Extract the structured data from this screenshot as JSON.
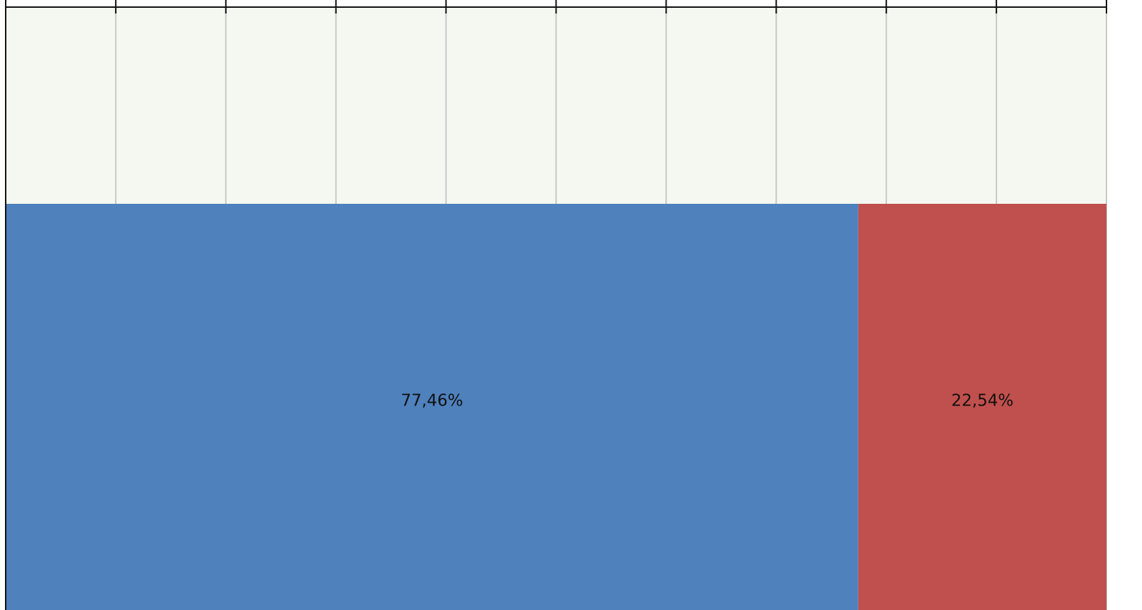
{
  "chart_data": {
    "type": "bar",
    "orientation": "horizontal",
    "stacked": true,
    "categories": [
      null
    ],
    "series": [
      {
        "color": "#4f81bd",
        "values": [
          77.46
        ],
        "value_labels": [
          "77,46%"
        ]
      },
      {
        "color": "#c0504d",
        "values": [
          22.54
        ],
        "value_labels": [
          "22,54%"
        ]
      }
    ],
    "xlim": [
      0,
      100
    ],
    "xticks": [
      0,
      10,
      20,
      30,
      40,
      50,
      60,
      70,
      80,
      90,
      100
    ],
    "grid": true
  }
}
